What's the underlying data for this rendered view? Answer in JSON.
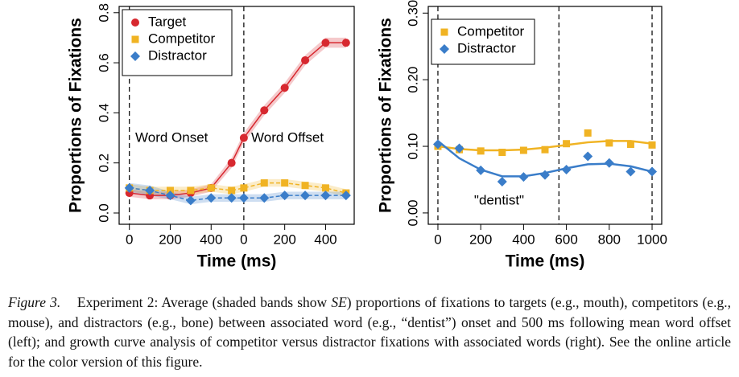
{
  "chart_data": [
    {
      "type": "line",
      "ylabel": "Proportions of Fixations",
      "xlabel": "Time (ms)",
      "x": [
        0,
        100,
        200,
        300,
        400,
        500,
        560,
        660,
        760,
        860,
        960,
        1060
      ],
      "xlim": [
        -50,
        1100
      ],
      "xticks": [
        0,
        200,
        400,
        {
          "value": 560,
          "label": "0"
        },
        {
          "value": 760,
          "label": "200"
        },
        {
          "value": 960,
          "label": "400"
        }
      ],
      "ylim": [
        -0.045,
        0.825
      ],
      "yticks": [
        {
          "value": 0,
          "label": "0.0"
        },
        {
          "value": 0.2,
          "label": "0.2"
        },
        {
          "value": 0.4,
          "label": "0.4"
        },
        {
          "value": 0.6,
          "label": "0.6"
        },
        {
          "value": 0.8,
          "label": "0.8"
        }
      ],
      "vlines": [
        0,
        560
      ],
      "annotations": [
        "Word Onset",
        "Word Offset"
      ],
      "legend": "top-left",
      "series": [
        {
          "name": "Target",
          "color": "#d7282f",
          "marker": "circle",
          "values": [
            0.08,
            0.07,
            0.07,
            0.08,
            0.1,
            0.2,
            0.3,
            0.41,
            0.5,
            0.61,
            0.68,
            0.68
          ],
          "se": [
            0.015,
            0.015,
            0.015,
            0.015,
            0.015,
            0.02,
            0.02,
            0.02,
            0.02,
            0.02,
            0.02,
            0.02
          ]
        },
        {
          "name": "Competitor",
          "color": "#f0b323",
          "marker": "square",
          "values": [
            0.1,
            0.09,
            0.09,
            0.09,
            0.1,
            0.09,
            0.1,
            0.12,
            0.12,
            0.11,
            0.1,
            0.08
          ],
          "se": [
            0.015,
            0.015,
            0.015,
            0.015,
            0.015,
            0.015,
            0.015,
            0.015,
            0.015,
            0.015,
            0.015,
            0.015
          ]
        },
        {
          "name": "Distractor",
          "color": "#3a7dc9",
          "marker": "diamond",
          "values": [
            0.1,
            0.09,
            0.07,
            0.05,
            0.06,
            0.06,
            0.06,
            0.06,
            0.07,
            0.07,
            0.07,
            0.07
          ],
          "se": [
            0.02,
            0.02,
            0.015,
            0.015,
            0.015,
            0.015,
            0.015,
            0.015,
            0.015,
            0.015,
            0.015,
            0.015
          ]
        }
      ]
    },
    {
      "type": "line",
      "ylabel": "Proportions of Fixations",
      "xlabel": "Time (ms)",
      "x": [
        0,
        100,
        200,
        300,
        400,
        500,
        600,
        700,
        800,
        900,
        1000
      ],
      "xlim": [
        -45,
        1045
      ],
      "xticks": [
        0,
        200,
        400,
        600,
        800,
        1000
      ],
      "ylim": [
        -0.017,
        0.31
      ],
      "yticks": [
        {
          "value": 0,
          "label": "0.00"
        },
        {
          "value": 0.1,
          "label": "0.10"
        },
        {
          "value": 0.2,
          "label": "0.20"
        },
        {
          "value": 0.3,
          "label": "0.30"
        }
      ],
      "vlines": [
        0,
        565,
        1000
      ],
      "annotations": [
        "\"dentist\""
      ],
      "legend": "top-left",
      "series": [
        {
          "name": "Competitor",
          "color": "#f0b323",
          "marker": "square",
          "values": [
            0.1,
            0.095,
            0.093,
            0.091,
            0.094,
            0.095,
            0.104,
            0.12,
            0.105,
            0.103,
            0.102
          ],
          "fit": [
            0.1,
            0.096,
            0.094,
            0.094,
            0.095,
            0.098,
            0.102,
            0.106,
            0.108,
            0.108,
            0.104
          ]
        },
        {
          "name": "Distractor",
          "color": "#3a7dc9",
          "marker": "diamond",
          "values": [
            0.103,
            0.097,
            0.064,
            0.047,
            0.054,
            0.057,
            0.065,
            0.085,
            0.075,
            0.062,
            0.062
          ],
          "fit": [
            0.108,
            0.082,
            0.065,
            0.055,
            0.055,
            0.06,
            0.067,
            0.073,
            0.074,
            0.07,
            0.062
          ]
        }
      ]
    }
  ],
  "caption": {
    "label": "Figure 3.",
    "before": "Experiment 2: Average (shaded bands show",
    "emphasis": "SE",
    "after": ") proportions of fixations to targets (e.g., mouth), competitors (e.g., mouse), and distractors (e.g., bone) between associated word (e.g., “dentist”) onset and 500 ms following mean word offset (left); and growth curve analysis of competitor versus distractor fixations with associated words (right). See the online article for the color version of this figure."
  }
}
